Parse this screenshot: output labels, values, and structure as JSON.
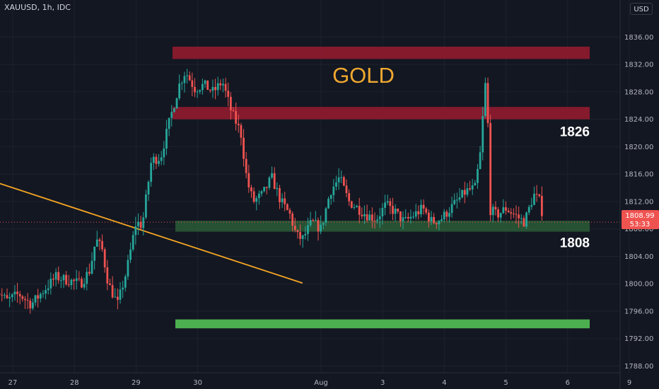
{
  "header": {
    "symbol": "XAUUSD, 1h, IDC",
    "currency": "USD"
  },
  "price_label": {
    "value": "1808.99",
    "countdown": "53:33"
  },
  "colors": {
    "background": "#131722",
    "up": "#26a69a",
    "down": "#ef5350",
    "trendline": "#f5a623",
    "title": "#f0a830",
    "axis_text": "#b2b5be",
    "resistance_zone": "#8b1a2e",
    "support_zone": "#2f6b3a",
    "support_bar": "#4caf50"
  },
  "chart_data": {
    "type": "candlestick",
    "title": "GOLD",
    "y_axis": {
      "min": 1786.4,
      "max": 1837.0,
      "ticks": [
        1788,
        1792,
        1796,
        1800,
        1804,
        1808,
        1812,
        1816,
        1820,
        1824,
        1828,
        1832,
        1836
      ]
    },
    "x_axis": {
      "ticks": [
        {
          "label": "27",
          "day": 27.0
        },
        {
          "label": "28",
          "day": 28.0
        },
        {
          "label": "29",
          "day": 29.0
        },
        {
          "label": "30",
          "day": 30.0
        },
        {
          "label": "Aug",
          "day": 32.0
        },
        {
          "label": "3",
          "day": 33.0
        },
        {
          "label": "4",
          "day": 34.0
        },
        {
          "label": "5",
          "day": 35.0
        },
        {
          "label": "6",
          "day": 36.0
        },
        {
          "label": "9",
          "day": 37.0
        }
      ]
    },
    "current_price": 1808.99,
    "zones": [
      {
        "label": "",
        "from": 1832.8,
        "to": 1834.6,
        "style": "resistance"
      },
      {
        "label": "1826",
        "from": 1824.0,
        "to": 1825.8,
        "style": "resistance"
      },
      {
        "label": "1808",
        "from": 1807.6,
        "to": 1809.2,
        "style": "support"
      },
      {
        "label": "",
        "from": 1793.5,
        "to": 1794.8,
        "style": "support_strong"
      }
    ],
    "trendline": {
      "from": {
        "day": 26.7,
        "price": 1814.9
      },
      "to": {
        "day": 31.7,
        "price": 1800.1
      }
    },
    "price_path": [
      {
        "day": 26.7,
        "price": 1799.5
      },
      {
        "day": 26.9,
        "price": 1797.5
      },
      {
        "day": 27.1,
        "price": 1798.5
      },
      {
        "day": 27.3,
        "price": 1797.0
      },
      {
        "day": 27.5,
        "price": 1799.0
      },
      {
        "day": 27.7,
        "price": 1801.0
      },
      {
        "day": 27.9,
        "price": 1800.5
      },
      {
        "day": 28.1,
        "price": 1800.0
      },
      {
        "day": 28.25,
        "price": 1802.0
      },
      {
        "day": 28.35,
        "price": 1806.5
      },
      {
        "day": 28.45,
        "price": 1805.0
      },
      {
        "day": 28.55,
        "price": 1800.0
      },
      {
        "day": 28.7,
        "price": 1797.0
      },
      {
        "day": 28.85,
        "price": 1802.0
      },
      {
        "day": 29.0,
        "price": 1809.0
      },
      {
        "day": 29.1,
        "price": 1808.5
      },
      {
        "day": 29.25,
        "price": 1818.0
      },
      {
        "day": 29.4,
        "price": 1818.5
      },
      {
        "day": 29.55,
        "price": 1824.0
      },
      {
        "day": 29.7,
        "price": 1829.0
      },
      {
        "day": 29.8,
        "price": 1831.0
      },
      {
        "day": 29.95,
        "price": 1828.5
      },
      {
        "day": 30.1,
        "price": 1829.0
      },
      {
        "day": 30.25,
        "price": 1828.0
      },
      {
        "day": 30.4,
        "price": 1829.5
      },
      {
        "day": 30.55,
        "price": 1825.0
      },
      {
        "day": 30.7,
        "price": 1822.0
      },
      {
        "day": 30.8,
        "price": 1815.0
      },
      {
        "day": 30.9,
        "price": 1812.0
      },
      {
        "day": 31.05,
        "price": 1813.0
      },
      {
        "day": 31.2,
        "price": 1815.5
      },
      {
        "day": 31.35,
        "price": 1812.0
      },
      {
        "day": 31.5,
        "price": 1810.0
      },
      {
        "day": 31.6,
        "price": 1807.0
      },
      {
        "day": 31.7,
        "price": 1806.5
      },
      {
        "day": 31.85,
        "price": 1809.0
      },
      {
        "day": 32.0,
        "price": 1808.0
      },
      {
        "day": 32.15,
        "price": 1813.5
      },
      {
        "day": 32.3,
        "price": 1815.5
      },
      {
        "day": 32.45,
        "price": 1812.0
      },
      {
        "day": 32.6,
        "price": 1811.0
      },
      {
        "day": 32.75,
        "price": 1810.0
      },
      {
        "day": 32.9,
        "price": 1809.5
      },
      {
        "day": 33.05,
        "price": 1811.5
      },
      {
        "day": 33.2,
        "price": 1810.5
      },
      {
        "day": 33.35,
        "price": 1809.0
      },
      {
        "day": 33.5,
        "price": 1810.0
      },
      {
        "day": 33.65,
        "price": 1811.0
      },
      {
        "day": 33.8,
        "price": 1809.0
      },
      {
        "day": 33.95,
        "price": 1809.5
      },
      {
        "day": 34.1,
        "price": 1811.0
      },
      {
        "day": 34.25,
        "price": 1812.5
      },
      {
        "day": 34.35,
        "price": 1813.5
      },
      {
        "day": 34.5,
        "price": 1814.0
      },
      {
        "day": 34.6,
        "price": 1820.0
      },
      {
        "day": 34.65,
        "price": 1829.0
      },
      {
        "day": 34.7,
        "price": 1829.0
      },
      {
        "day": 34.72,
        "price": 1811.0
      },
      {
        "day": 34.85,
        "price": 1810.0
      },
      {
        "day": 35.0,
        "price": 1811.0
      },
      {
        "day": 35.15,
        "price": 1810.0
      },
      {
        "day": 35.3,
        "price": 1809.0
      },
      {
        "day": 35.45,
        "price": 1813.0
      },
      {
        "day": 35.55,
        "price": 1812.0
      },
      {
        "day": 35.62,
        "price": 1808.99
      }
    ]
  }
}
